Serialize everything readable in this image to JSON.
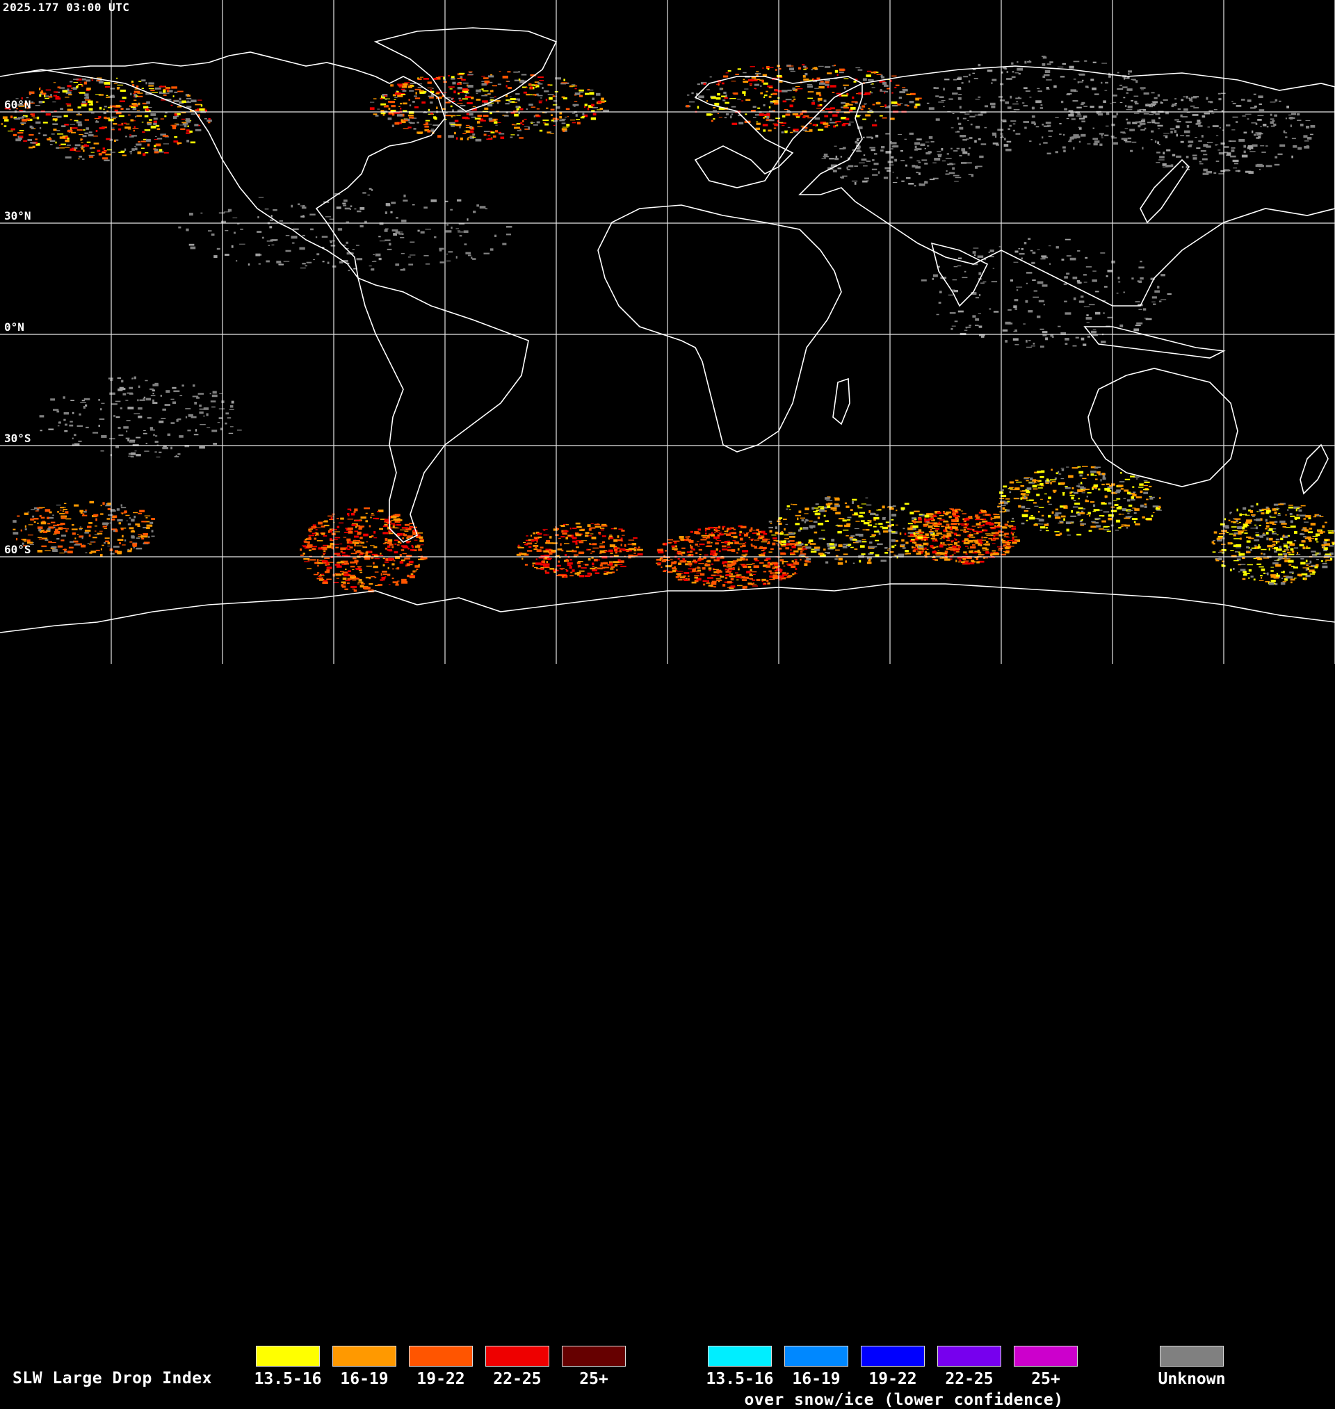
{
  "header": {
    "timestamp": "2025.177 03:00 UTC"
  },
  "map": {
    "lat_labels": [
      {
        "text": "60°N",
        "lat": 60
      },
      {
        "text": "30°N",
        "lat": 30
      },
      {
        "text": "0°N",
        "lat": 0
      },
      {
        "text": "30°S",
        "lat": -30
      },
      {
        "text": "60°S",
        "lat": -60
      }
    ],
    "graticule_lon_step_deg": 30,
    "graticule_lat_step_deg": 30,
    "coastline_color": "#ffffff",
    "grid_color": "#ffffff"
  },
  "legend": {
    "title": "SLW Large Drop Index",
    "standard": [
      {
        "label": "13.5-16",
        "color": "#ffff00"
      },
      {
        "label": "16-19",
        "color": "#ff9900"
      },
      {
        "label": "19-22",
        "color": "#ff5500"
      },
      {
        "label": "22-25",
        "color": "#ee0000"
      },
      {
        "label": "25+",
        "color": "#660000"
      }
    ],
    "snow_ice": [
      {
        "label": "13.5-16",
        "color": "#00eeff"
      },
      {
        "label": "16-19",
        "color": "#0088ff"
      },
      {
        "label": "19-22",
        "color": "#0000ff"
      },
      {
        "label": "22-25",
        "color": "#7700ee"
      },
      {
        "label": "25+",
        "color": "#cc00cc"
      }
    ],
    "snow_ice_note": "over snow/ice (lower confidence)",
    "unknown": {
      "label": "Unknown",
      "color": "#808080"
    }
  }
}
